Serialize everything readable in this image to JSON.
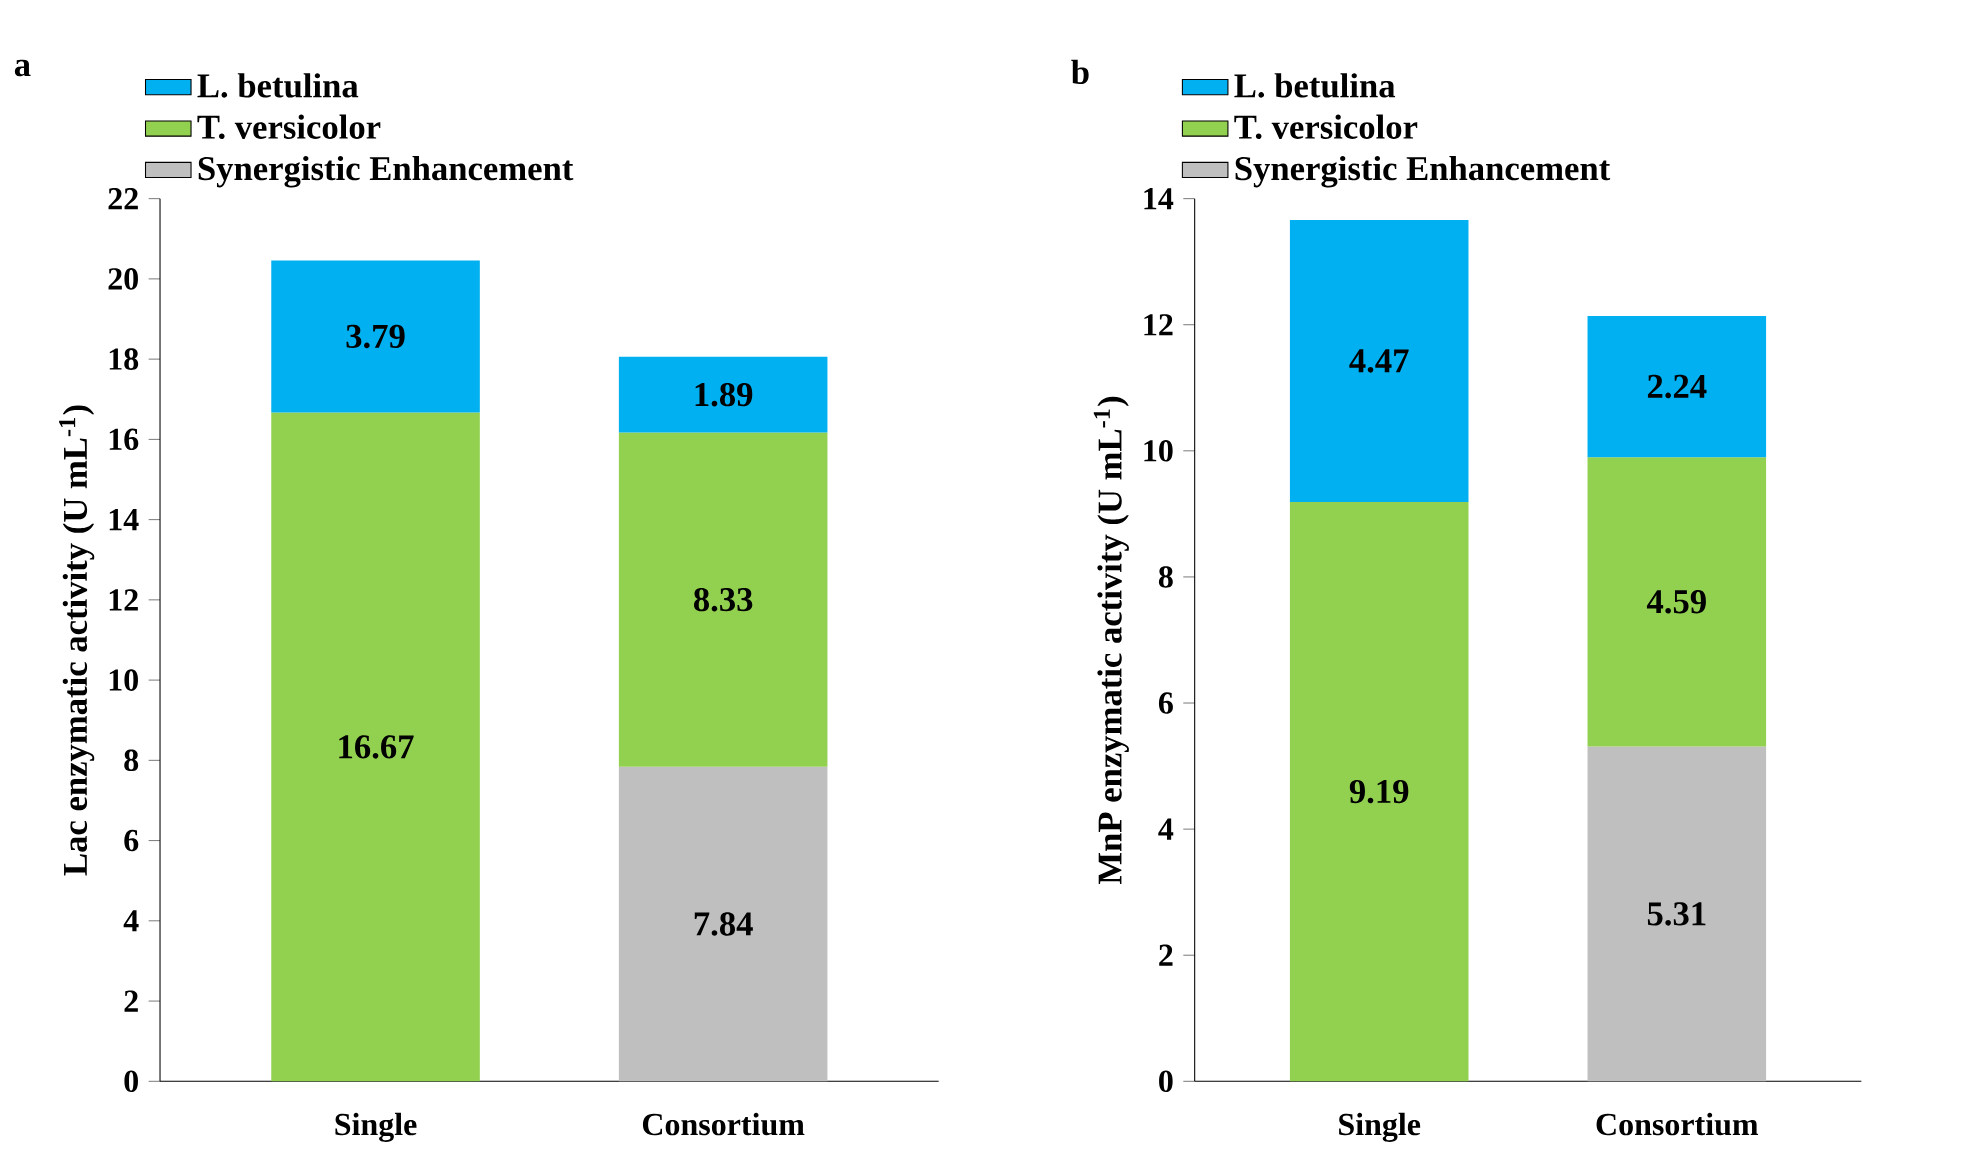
{
  "chart_data": [
    {
      "type": "bar",
      "stacked": true,
      "title": "a",
      "ylabel": "Lac enzymatic activity (U mL$^{-1}$)",
      "categories": [
        "Single",
        "Consortium"
      ],
      "ylim": [
        0,
        22
      ],
      "yticks": [
        0,
        2,
        4,
        6,
        8,
        10,
        12,
        14,
        16,
        18,
        20,
        22
      ],
      "legend": "top left",
      "data_labels": true,
      "series": [
        {
          "name": "Synergistic Enhancement",
          "color": "#bfbfbf",
          "values": [
            null,
            7.84
          ]
        },
        {
          "name": "T. versicolor",
          "color": "#92d050",
          "values": [
            16.67,
            8.33
          ]
        },
        {
          "name": "L. betulina",
          "color": "#00b0f0",
          "values": [
            3.79,
            1.89
          ]
        }
      ]
    },
    {
      "type": "bar",
      "stacked": true,
      "title": "b",
      "ylabel": "MnP enzymatic activity (U mL$^{-1}$)",
      "categories": [
        "Single",
        "Consortium"
      ],
      "ylim": [
        0,
        14
      ],
      "yticks": [
        0,
        2,
        4,
        6,
        8,
        10,
        12,
        14
      ],
      "legend": "top left",
      "data_labels": true,
      "series": [
        {
          "name": "Synergistic Enhancement",
          "color": "#bfbfbf",
          "values": [
            null,
            5.31
          ]
        },
        {
          "name": "T. versicolor",
          "color": "#92d050",
          "values": [
            9.19,
            4.59
          ]
        },
        {
          "name": "L. betulina",
          "color": "#00b0f0",
          "values": [
            4.47,
            2.24
          ]
        }
      ]
    }
  ]
}
